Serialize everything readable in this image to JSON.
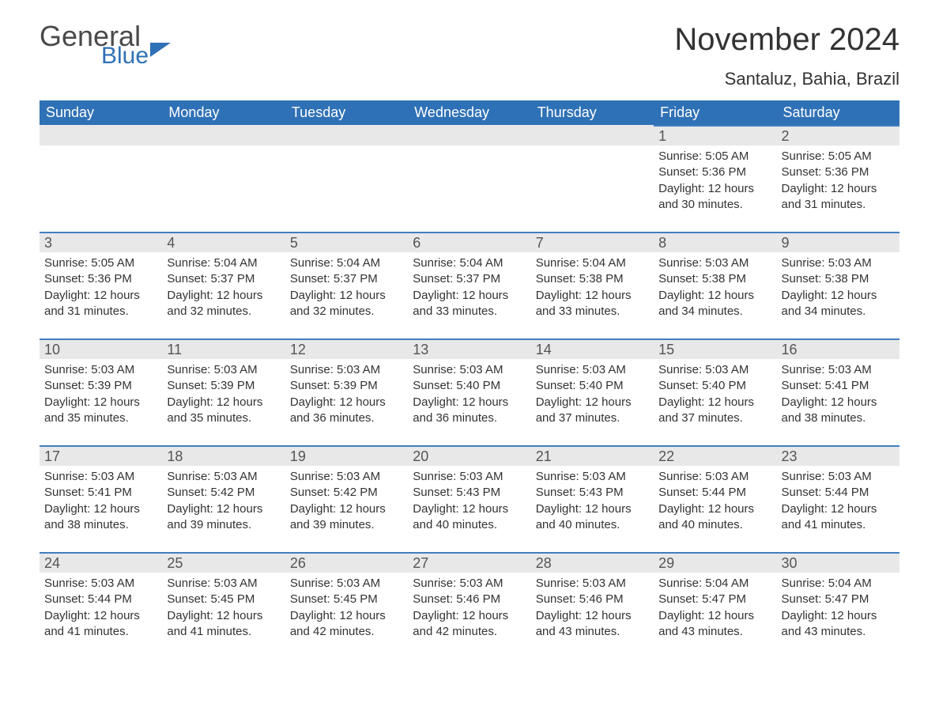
{
  "logo": {
    "text1": "General",
    "text2": "Blue"
  },
  "title": {
    "month": "November",
    "year": "2024",
    "location": "Santaluz, Bahia, Brazil"
  },
  "colors": {
    "header_bg": "#2f71b6",
    "header_text": "#ffffff",
    "row_head_bg": "#e8e8e8",
    "row_border": "#3f7ec1",
    "text": "#222222",
    "daynum": "#555555",
    "background": "#ffffff"
  },
  "fonts": {
    "title_size_pt": 30,
    "location_size_pt": 16,
    "dayhead_size_pt": 14,
    "daynum_size_pt": 14,
    "body_size_pt": 11
  },
  "weekdays": [
    "Sunday",
    "Monday",
    "Tuesday",
    "Wednesday",
    "Thursday",
    "Friday",
    "Saturday"
  ],
  "labels": {
    "sunrise": "Sunrise",
    "sunset": "Sunset",
    "daylight": "Daylight"
  },
  "first_weekday_index": 5,
  "days": [
    {
      "n": 1,
      "sunrise": "5:05 AM",
      "sunset": "5:36 PM",
      "daylight": "12 hours and 30 minutes."
    },
    {
      "n": 2,
      "sunrise": "5:05 AM",
      "sunset": "5:36 PM",
      "daylight": "12 hours and 31 minutes."
    },
    {
      "n": 3,
      "sunrise": "5:05 AM",
      "sunset": "5:36 PM",
      "daylight": "12 hours and 31 minutes."
    },
    {
      "n": 4,
      "sunrise": "5:04 AM",
      "sunset": "5:37 PM",
      "daylight": "12 hours and 32 minutes."
    },
    {
      "n": 5,
      "sunrise": "5:04 AM",
      "sunset": "5:37 PM",
      "daylight": "12 hours and 32 minutes."
    },
    {
      "n": 6,
      "sunrise": "5:04 AM",
      "sunset": "5:37 PM",
      "daylight": "12 hours and 33 minutes."
    },
    {
      "n": 7,
      "sunrise": "5:04 AM",
      "sunset": "5:38 PM",
      "daylight": "12 hours and 33 minutes."
    },
    {
      "n": 8,
      "sunrise": "5:03 AM",
      "sunset": "5:38 PM",
      "daylight": "12 hours and 34 minutes."
    },
    {
      "n": 9,
      "sunrise": "5:03 AM",
      "sunset": "5:38 PM",
      "daylight": "12 hours and 34 minutes."
    },
    {
      "n": 10,
      "sunrise": "5:03 AM",
      "sunset": "5:39 PM",
      "daylight": "12 hours and 35 minutes."
    },
    {
      "n": 11,
      "sunrise": "5:03 AM",
      "sunset": "5:39 PM",
      "daylight": "12 hours and 35 minutes."
    },
    {
      "n": 12,
      "sunrise": "5:03 AM",
      "sunset": "5:39 PM",
      "daylight": "12 hours and 36 minutes."
    },
    {
      "n": 13,
      "sunrise": "5:03 AM",
      "sunset": "5:40 PM",
      "daylight": "12 hours and 36 minutes."
    },
    {
      "n": 14,
      "sunrise": "5:03 AM",
      "sunset": "5:40 PM",
      "daylight": "12 hours and 37 minutes."
    },
    {
      "n": 15,
      "sunrise": "5:03 AM",
      "sunset": "5:40 PM",
      "daylight": "12 hours and 37 minutes."
    },
    {
      "n": 16,
      "sunrise": "5:03 AM",
      "sunset": "5:41 PM",
      "daylight": "12 hours and 38 minutes."
    },
    {
      "n": 17,
      "sunrise": "5:03 AM",
      "sunset": "5:41 PM",
      "daylight": "12 hours and 38 minutes."
    },
    {
      "n": 18,
      "sunrise": "5:03 AM",
      "sunset": "5:42 PM",
      "daylight": "12 hours and 39 minutes."
    },
    {
      "n": 19,
      "sunrise": "5:03 AM",
      "sunset": "5:42 PM",
      "daylight": "12 hours and 39 minutes."
    },
    {
      "n": 20,
      "sunrise": "5:03 AM",
      "sunset": "5:43 PM",
      "daylight": "12 hours and 40 minutes."
    },
    {
      "n": 21,
      "sunrise": "5:03 AM",
      "sunset": "5:43 PM",
      "daylight": "12 hours and 40 minutes."
    },
    {
      "n": 22,
      "sunrise": "5:03 AM",
      "sunset": "5:44 PM",
      "daylight": "12 hours and 40 minutes."
    },
    {
      "n": 23,
      "sunrise": "5:03 AM",
      "sunset": "5:44 PM",
      "daylight": "12 hours and 41 minutes."
    },
    {
      "n": 24,
      "sunrise": "5:03 AM",
      "sunset": "5:44 PM",
      "daylight": "12 hours and 41 minutes."
    },
    {
      "n": 25,
      "sunrise": "5:03 AM",
      "sunset": "5:45 PM",
      "daylight": "12 hours and 41 minutes."
    },
    {
      "n": 26,
      "sunrise": "5:03 AM",
      "sunset": "5:45 PM",
      "daylight": "12 hours and 42 minutes."
    },
    {
      "n": 27,
      "sunrise": "5:03 AM",
      "sunset": "5:46 PM",
      "daylight": "12 hours and 42 minutes."
    },
    {
      "n": 28,
      "sunrise": "5:03 AM",
      "sunset": "5:46 PM",
      "daylight": "12 hours and 43 minutes."
    },
    {
      "n": 29,
      "sunrise": "5:04 AM",
      "sunset": "5:47 PM",
      "daylight": "12 hours and 43 minutes."
    },
    {
      "n": 30,
      "sunrise": "5:04 AM",
      "sunset": "5:47 PM",
      "daylight": "12 hours and 43 minutes."
    }
  ]
}
